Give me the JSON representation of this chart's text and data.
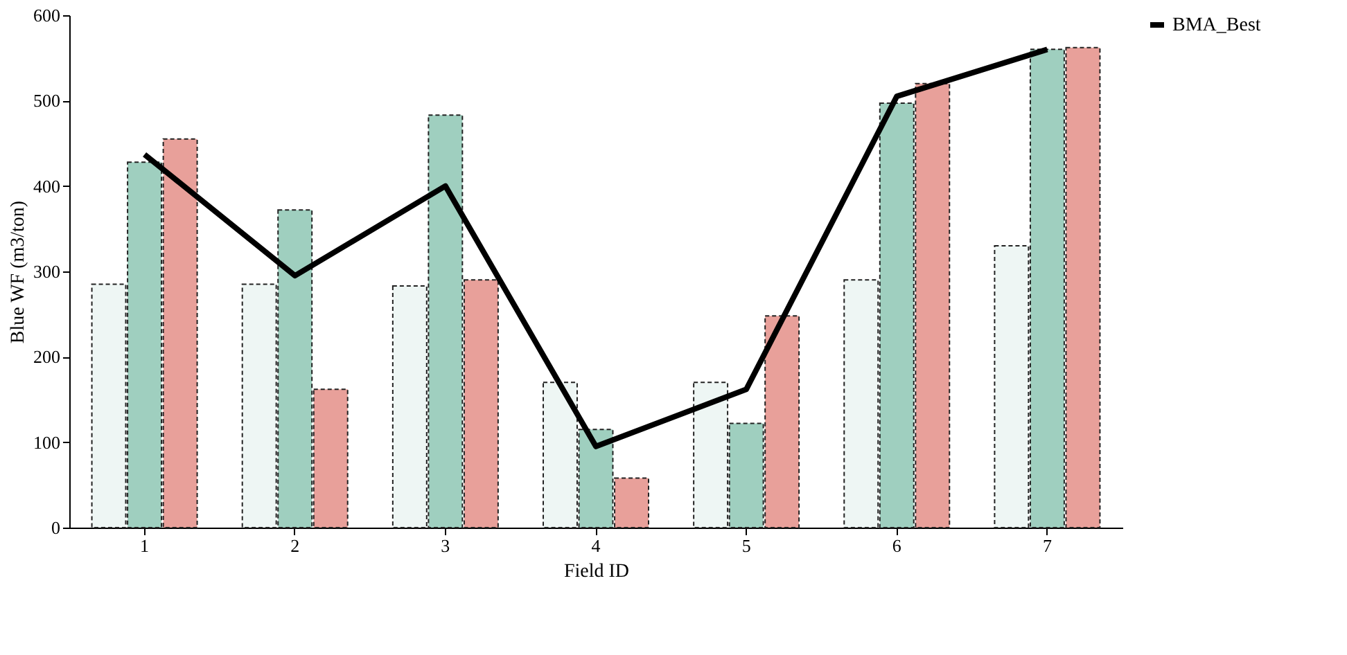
{
  "chart_data": {
    "type": "bar",
    "xlabel": "Field ID",
    "ylabel": "Blue WF (m3/ton)",
    "categories": [
      "1",
      "2",
      "3",
      "4",
      "5",
      "6",
      "7"
    ],
    "series": [
      {
        "color": "#eef6f4",
        "values": [
          285,
          285,
          283,
          170,
          170,
          290,
          330
        ]
      },
      {
        "color": "#9fcfbf",
        "values": [
          428,
          372,
          483,
          115,
          122,
          497,
          560
        ]
      },
      {
        "color": "#e8a09a",
        "values": [
          455,
          162,
          290,
          58,
          248,
          520,
          562
        ]
      },
      {
        "name": "BMA_Best",
        "type": "line",
        "color": "#000000",
        "values": [
          437,
          295,
          400,
          95,
          162,
          505,
          560
        ]
      }
    ],
    "ylim": [
      0,
      600
    ],
    "yticks": [
      0,
      100,
      200,
      300,
      400,
      500,
      600
    ],
    "grid": false,
    "legend": "top right",
    "marker": "none",
    "line_style": "solid"
  }
}
